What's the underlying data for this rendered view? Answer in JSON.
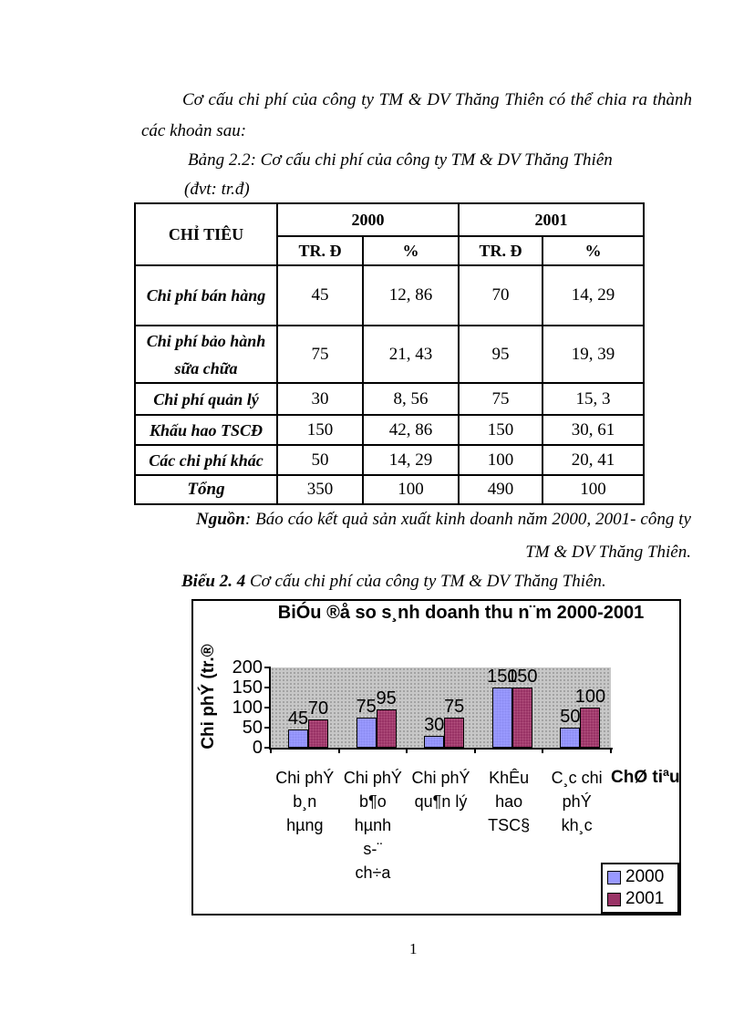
{
  "intro": {
    "line1": "Cơ cấu chi phí của công ty TM & DV Thăng Thiên có thể chia ra thành",
    "line2": "các khoản sau:"
  },
  "captions": {
    "table_caption": "Bảng 2.2: Cơ cấu chi phí của công ty TM & DV Thăng Thiên",
    "table_unit": "(đvt: tr.đ)"
  },
  "table": {
    "header": {
      "criteria": "CHỈ TIÊU",
      "year_2000": "2000",
      "year_2001": "2001",
      "unit_trd": "TR. Đ",
      "unit_pct": "%"
    },
    "rows": [
      {
        "label": "Chi phí bán hàng",
        "trd_2000": "45",
        "pct_2000": "12, 86",
        "trd_2001": "70",
        "pct_2001": "14, 29"
      },
      {
        "label": "Chi phí bảo hành sữa chữa",
        "trd_2000": "75",
        "pct_2000": "21, 43",
        "trd_2001": "95",
        "pct_2001": "19, 39"
      },
      {
        "label": "Chi phí quản lý",
        "trd_2000": "30",
        "pct_2000": "8, 56",
        "trd_2001": "75",
        "pct_2001": "15, 3"
      },
      {
        "label": "Khấu hao TSCĐ",
        "trd_2000": "150",
        "pct_2000": "42, 86",
        "trd_2001": "150",
        "pct_2001": "30, 61"
      },
      {
        "label": "Các chi phí khác",
        "trd_2000": "50",
        "pct_2000": "14, 29",
        "trd_2001": "100",
        "pct_2001": "20, 41"
      }
    ],
    "total": {
      "label": "Tổng",
      "trd_2000": "350",
      "pct_2000": "100",
      "trd_2001": "490",
      "pct_2001": "100"
    }
  },
  "source": {
    "label": "Nguồn",
    "line1_rest": ": Báo cáo kết quả sản xuất kinh doanh năm 2000, 2001- công ty",
    "line2": "TM & DV Thăng Thiên."
  },
  "figure_caption": {
    "bold": "Biểu 2. 4",
    "rest": " Cơ cấu chi phí của công ty TM & DV Thăng Thiên."
  },
  "chart_data": {
    "type": "bar",
    "title": "BiÓu ®å so s¸nh doanh thu n¨m 2000-2001",
    "ylabel": "Chi phÝ (tr.®",
    "xlabel": "ChØ tiªu",
    "categories": [
      [
        "Chi phÝ",
        "b¸n",
        "hµng"
      ],
      [
        "Chi phÝ",
        "b¶o",
        "hµnh",
        "s-¨",
        "ch÷a"
      ],
      [
        "Chi phÝ",
        "qu¶n lý"
      ],
      [
        "KhÊu",
        "hao",
        "TSC§"
      ],
      [
        "C¸c chi",
        "phÝ",
        "kh¸c"
      ]
    ],
    "series": [
      {
        "name": "2000",
        "color": "#9999ff",
        "values": [
          45,
          75,
          30,
          150,
          50
        ]
      },
      {
        "name": "2001",
        "color": "#993366",
        "values": [
          70,
          95,
          75,
          150,
          100
        ]
      }
    ],
    "ylim": [
      0,
      200
    ],
    "yticks": [
      0,
      50,
      100,
      150,
      200
    ],
    "grid": "off",
    "legend_position": "bottom-right",
    "plot_bg": "#c7c7c7"
  },
  "footer": {
    "page_number": "1"
  }
}
